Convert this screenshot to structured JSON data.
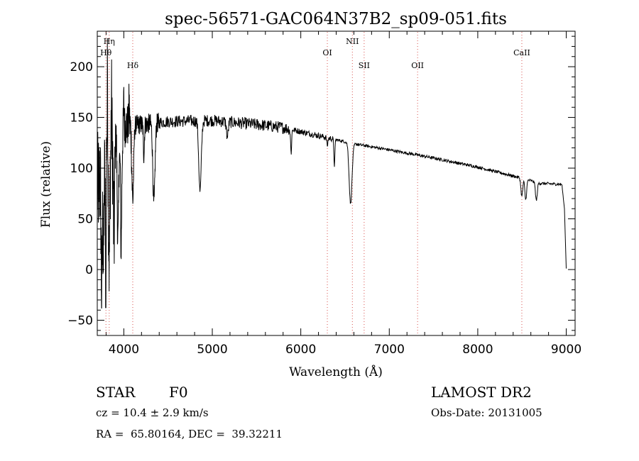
{
  "chart_data": {
    "type": "line",
    "title": "spec-56571-GAC064N37B2_sp09-051.fits",
    "xlabel": "Wavelength (Å)",
    "ylabel": "Flux (relative)",
    "xlim": [
      3700,
      9100
    ],
    "ylim": [
      -65,
      235
    ],
    "x_ticks": [
      4000,
      5000,
      6000,
      7000,
      8000,
      9000
    ],
    "x_tick_labels": [
      "4000",
      "5000",
      "6000",
      "7000",
      "8000",
      "9000"
    ],
    "y_ticks": [
      -50,
      0,
      50,
      100,
      150,
      200
    ],
    "y_tick_labels": [
      "−50",
      "0",
      "50",
      "100",
      "150",
      "200"
    ],
    "line_color": "#000000",
    "marker_color": "#d9534f",
    "continuum_anchors": [
      [
        3700,
        80
      ],
      [
        3750,
        90
      ],
      [
        3800,
        110
      ],
      [
        3900,
        135
      ],
      [
        4000,
        142
      ],
      [
        4200,
        143
      ],
      [
        4500,
        146
      ],
      [
        5000,
        147
      ],
      [
        5500,
        143
      ],
      [
        5800,
        140
      ],
      [
        6000,
        136
      ],
      [
        6300,
        130
      ],
      [
        6600,
        124
      ],
      [
        7000,
        118
      ],
      [
        7500,
        110
      ],
      [
        8000,
        101
      ],
      [
        8500,
        90
      ],
      [
        8700,
        85
      ],
      [
        8950,
        84
      ],
      [
        8980,
        60
      ],
      [
        9000,
        1
      ]
    ],
    "absorption_features": [
      {
        "x": 3750,
        "depth": 120,
        "width": 6
      },
      {
        "x": 3770,
        "depth": 90,
        "width": 6
      },
      {
        "x": 3798,
        "depth": 130,
        "width": 6
      },
      {
        "x": 3835,
        "depth": 110,
        "width": 7
      },
      {
        "x": 3889,
        "depth": 100,
        "width": 8
      },
      {
        "x": 3933,
        "depth": 110,
        "width": 8
      },
      {
        "x": 3968,
        "depth": 120,
        "width": 9
      },
      {
        "x": 4101,
        "depth": 75,
        "width": 10
      },
      {
        "x": 4226,
        "depth": 30,
        "width": 6
      },
      {
        "x": 4340,
        "depth": 80,
        "width": 12
      },
      {
        "x": 4861,
        "depth": 70,
        "width": 14
      },
      {
        "x": 5170,
        "depth": 15,
        "width": 10
      },
      {
        "x": 5890,
        "depth": 22,
        "width": 6
      },
      {
        "x": 6300,
        "depth": 8,
        "width": 6
      },
      {
        "x": 6380,
        "depth": 25,
        "width": 6
      },
      {
        "x": 6563,
        "depth": 60,
        "width": 16
      },
      {
        "x": 8498,
        "depth": 18,
        "width": 10
      },
      {
        "x": 8542,
        "depth": 20,
        "width": 10
      },
      {
        "x": 8662,
        "depth": 18,
        "width": 10
      }
    ],
    "emission_spikes": [
      {
        "x": 3805,
        "height": 80
      },
      {
        "x": 3815,
        "height": 95
      },
      {
        "x": 3860,
        "height": 40
      },
      {
        "x": 3960,
        "height": 40
      },
      {
        "x": 4000,
        "height": 25
      },
      {
        "x": 4060,
        "height": 25
      }
    ],
    "line_markers": [
      {
        "label": "Hη",
        "x": 3835,
        "row": 0
      },
      {
        "label": "Hθ",
        "x": 3798,
        "row": 1
      },
      {
        "label": "Hδ",
        "x": 4101,
        "row": 2
      },
      {
        "label": "OI",
        "x": 6300,
        "row": 1
      },
      {
        "label": "NII",
        "x": 6583,
        "row": 0
      },
      {
        "label": "SII",
        "x": 6716,
        "row": 2
      },
      {
        "label": "OII",
        "x": 7320,
        "row": 2
      },
      {
        "label": "CaII",
        "x": 8498,
        "row": 1
      }
    ]
  },
  "info": {
    "object_class": "STAR",
    "subclass": "F0",
    "survey": "LAMOST DR2",
    "cz": "cz = 10.4 ± 2.9 km/s",
    "obs_date": "Obs-Date: 20131005",
    "coords": "RA =  65.80164, DEC =  39.32211"
  }
}
